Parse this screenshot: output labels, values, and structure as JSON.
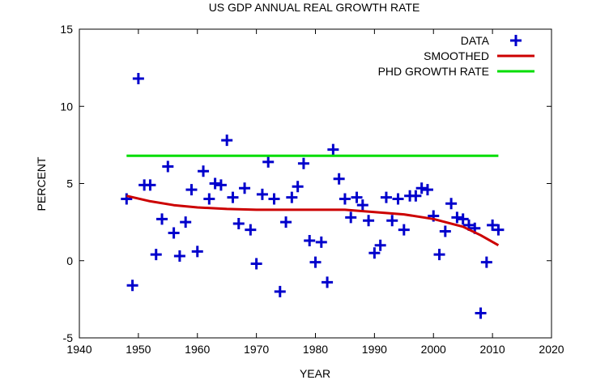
{
  "chart_data": {
    "type": "scatter",
    "title": "US GDP ANNUAL REAL GROWTH RATE",
    "xlabel": "YEAR",
    "ylabel": "PERCENT",
    "xlim": [
      1940,
      2020
    ],
    "ylim": [
      -5,
      15
    ],
    "x_ticks": [
      1940,
      1950,
      1960,
      1970,
      1980,
      1990,
      2000,
      2010,
      2020
    ],
    "y_ticks": [
      -5,
      0,
      5,
      10,
      15
    ],
    "grid": false,
    "legend_position": "top-right",
    "series": [
      {
        "name": "DATA",
        "style": "plus-markers",
        "color": "#0000cc",
        "points": [
          [
            1948,
            4.0
          ],
          [
            1949,
            -1.6
          ],
          [
            1950,
            11.8
          ],
          [
            1951,
            4.9
          ],
          [
            1952,
            4.9
          ],
          [
            1953,
            0.4
          ],
          [
            1954,
            2.7
          ],
          [
            1955,
            6.1
          ],
          [
            1956,
            1.8
          ],
          [
            1957,
            0.3
          ],
          [
            1958,
            2.5
          ],
          [
            1959,
            4.6
          ],
          [
            1960,
            0.6
          ],
          [
            1961,
            5.8
          ],
          [
            1962,
            4.0
          ],
          [
            1963,
            5.0
          ],
          [
            1964,
            4.9
          ],
          [
            1965,
            7.8
          ],
          [
            1966,
            4.1
          ],
          [
            1967,
            2.4
          ],
          [
            1968,
            4.7
          ],
          [
            1969,
            2.0
          ],
          [
            1970,
            -0.2
          ],
          [
            1971,
            4.3
          ],
          [
            1972,
            6.4
          ],
          [
            1973,
            4.0
          ],
          [
            1974,
            -2.0
          ],
          [
            1975,
            2.5
          ],
          [
            1976,
            4.1
          ],
          [
            1977,
            4.8
          ],
          [
            1978,
            6.3
          ],
          [
            1979,
            1.3
          ],
          [
            1980,
            -0.1
          ],
          [
            1981,
            1.2
          ],
          [
            1982,
            -1.4
          ],
          [
            1983,
            7.2
          ],
          [
            1984,
            5.3
          ],
          [
            1985,
            4.0
          ],
          [
            1986,
            2.8
          ],
          [
            1987,
            4.1
          ],
          [
            1988,
            3.6
          ],
          [
            1989,
            2.6
          ],
          [
            1990,
            0.5
          ],
          [
            1991,
            1.0
          ],
          [
            1992,
            4.1
          ],
          [
            1993,
            2.6
          ],
          [
            1994,
            4.0
          ],
          [
            1995,
            2.0
          ],
          [
            1996,
            4.2
          ],
          [
            1997,
            4.2
          ],
          [
            1998,
            4.7
          ],
          [
            1999,
            4.6
          ],
          [
            2000,
            2.9
          ],
          [
            2001,
            0.4
          ],
          [
            2002,
            1.9
          ],
          [
            2003,
            3.7
          ],
          [
            2004,
            2.8
          ],
          [
            2005,
            2.7
          ],
          [
            2006,
            2.3
          ],
          [
            2007,
            2.1
          ],
          [
            2008,
            -3.4
          ],
          [
            2009,
            -0.1
          ],
          [
            2010,
            2.3
          ],
          [
            2011,
            2.0
          ]
        ]
      },
      {
        "name": "SMOOTHED",
        "style": "line",
        "color": "#cc0000",
        "points": [
          [
            1948,
            4.2
          ],
          [
            1952,
            3.85
          ],
          [
            1956,
            3.6
          ],
          [
            1960,
            3.45
          ],
          [
            1965,
            3.35
          ],
          [
            1970,
            3.3
          ],
          [
            1975,
            3.3
          ],
          [
            1980,
            3.3
          ],
          [
            1985,
            3.3
          ],
          [
            1990,
            3.15
          ],
          [
            1995,
            3.0
          ],
          [
            2000,
            2.7
          ],
          [
            2005,
            2.2
          ],
          [
            2008,
            1.65
          ],
          [
            2011,
            1.0
          ]
        ]
      },
      {
        "name": "PHD GROWTH RATE",
        "style": "line",
        "color": "#00dd00",
        "points": [
          [
            1948,
            6.8
          ],
          [
            2011,
            6.8
          ]
        ]
      }
    ]
  }
}
